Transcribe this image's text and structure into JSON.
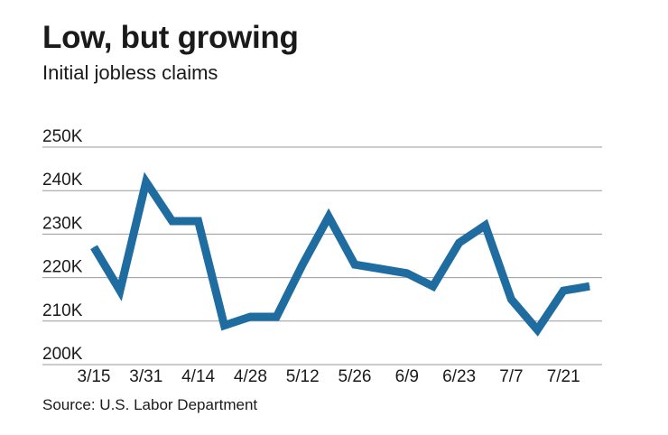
{
  "title": "Low, but growing",
  "subtitle": "Initial jobless claims",
  "source": "Source: U.S. Labor Department",
  "colors": {
    "line": "#1f6ca1",
    "grid": "#9a9a9a",
    "text": "#1a1a1a"
  },
  "chart_data": {
    "type": "line",
    "title": "Low, but growing",
    "subtitle": "Initial jobless claims",
    "xlabel": "",
    "ylabel": "",
    "ylim": [
      200,
      250
    ],
    "y_unit": "K",
    "y_ticks": [
      "200K",
      "210K",
      "220K",
      "230K",
      "240K",
      "250K"
    ],
    "x_tick_labels": [
      "3/15",
      "3/31",
      "4/14",
      "4/28",
      "5/12",
      "5/26",
      "6/9",
      "6/23",
      "7/7",
      "7/21"
    ],
    "grid": true,
    "x": [
      "3/15",
      "3/22",
      "3/29",
      "4/5",
      "4/12",
      "4/19",
      "4/26",
      "5/3",
      "5/10",
      "5/17",
      "5/24",
      "5/31",
      "6/7",
      "6/14",
      "6/21",
      "6/28",
      "7/5",
      "7/12",
      "7/19",
      "7/26"
    ],
    "x_tick_index": [
      0,
      2,
      4,
      6,
      8,
      10,
      12,
      14,
      16,
      18
    ],
    "series": [
      {
        "values": [
          227,
          217,
          242,
          233,
          233,
          209,
          211,
          211,
          223,
          234,
          223,
          222,
          221,
          218,
          228,
          232,
          215,
          208,
          217,
          218
        ]
      }
    ]
  }
}
